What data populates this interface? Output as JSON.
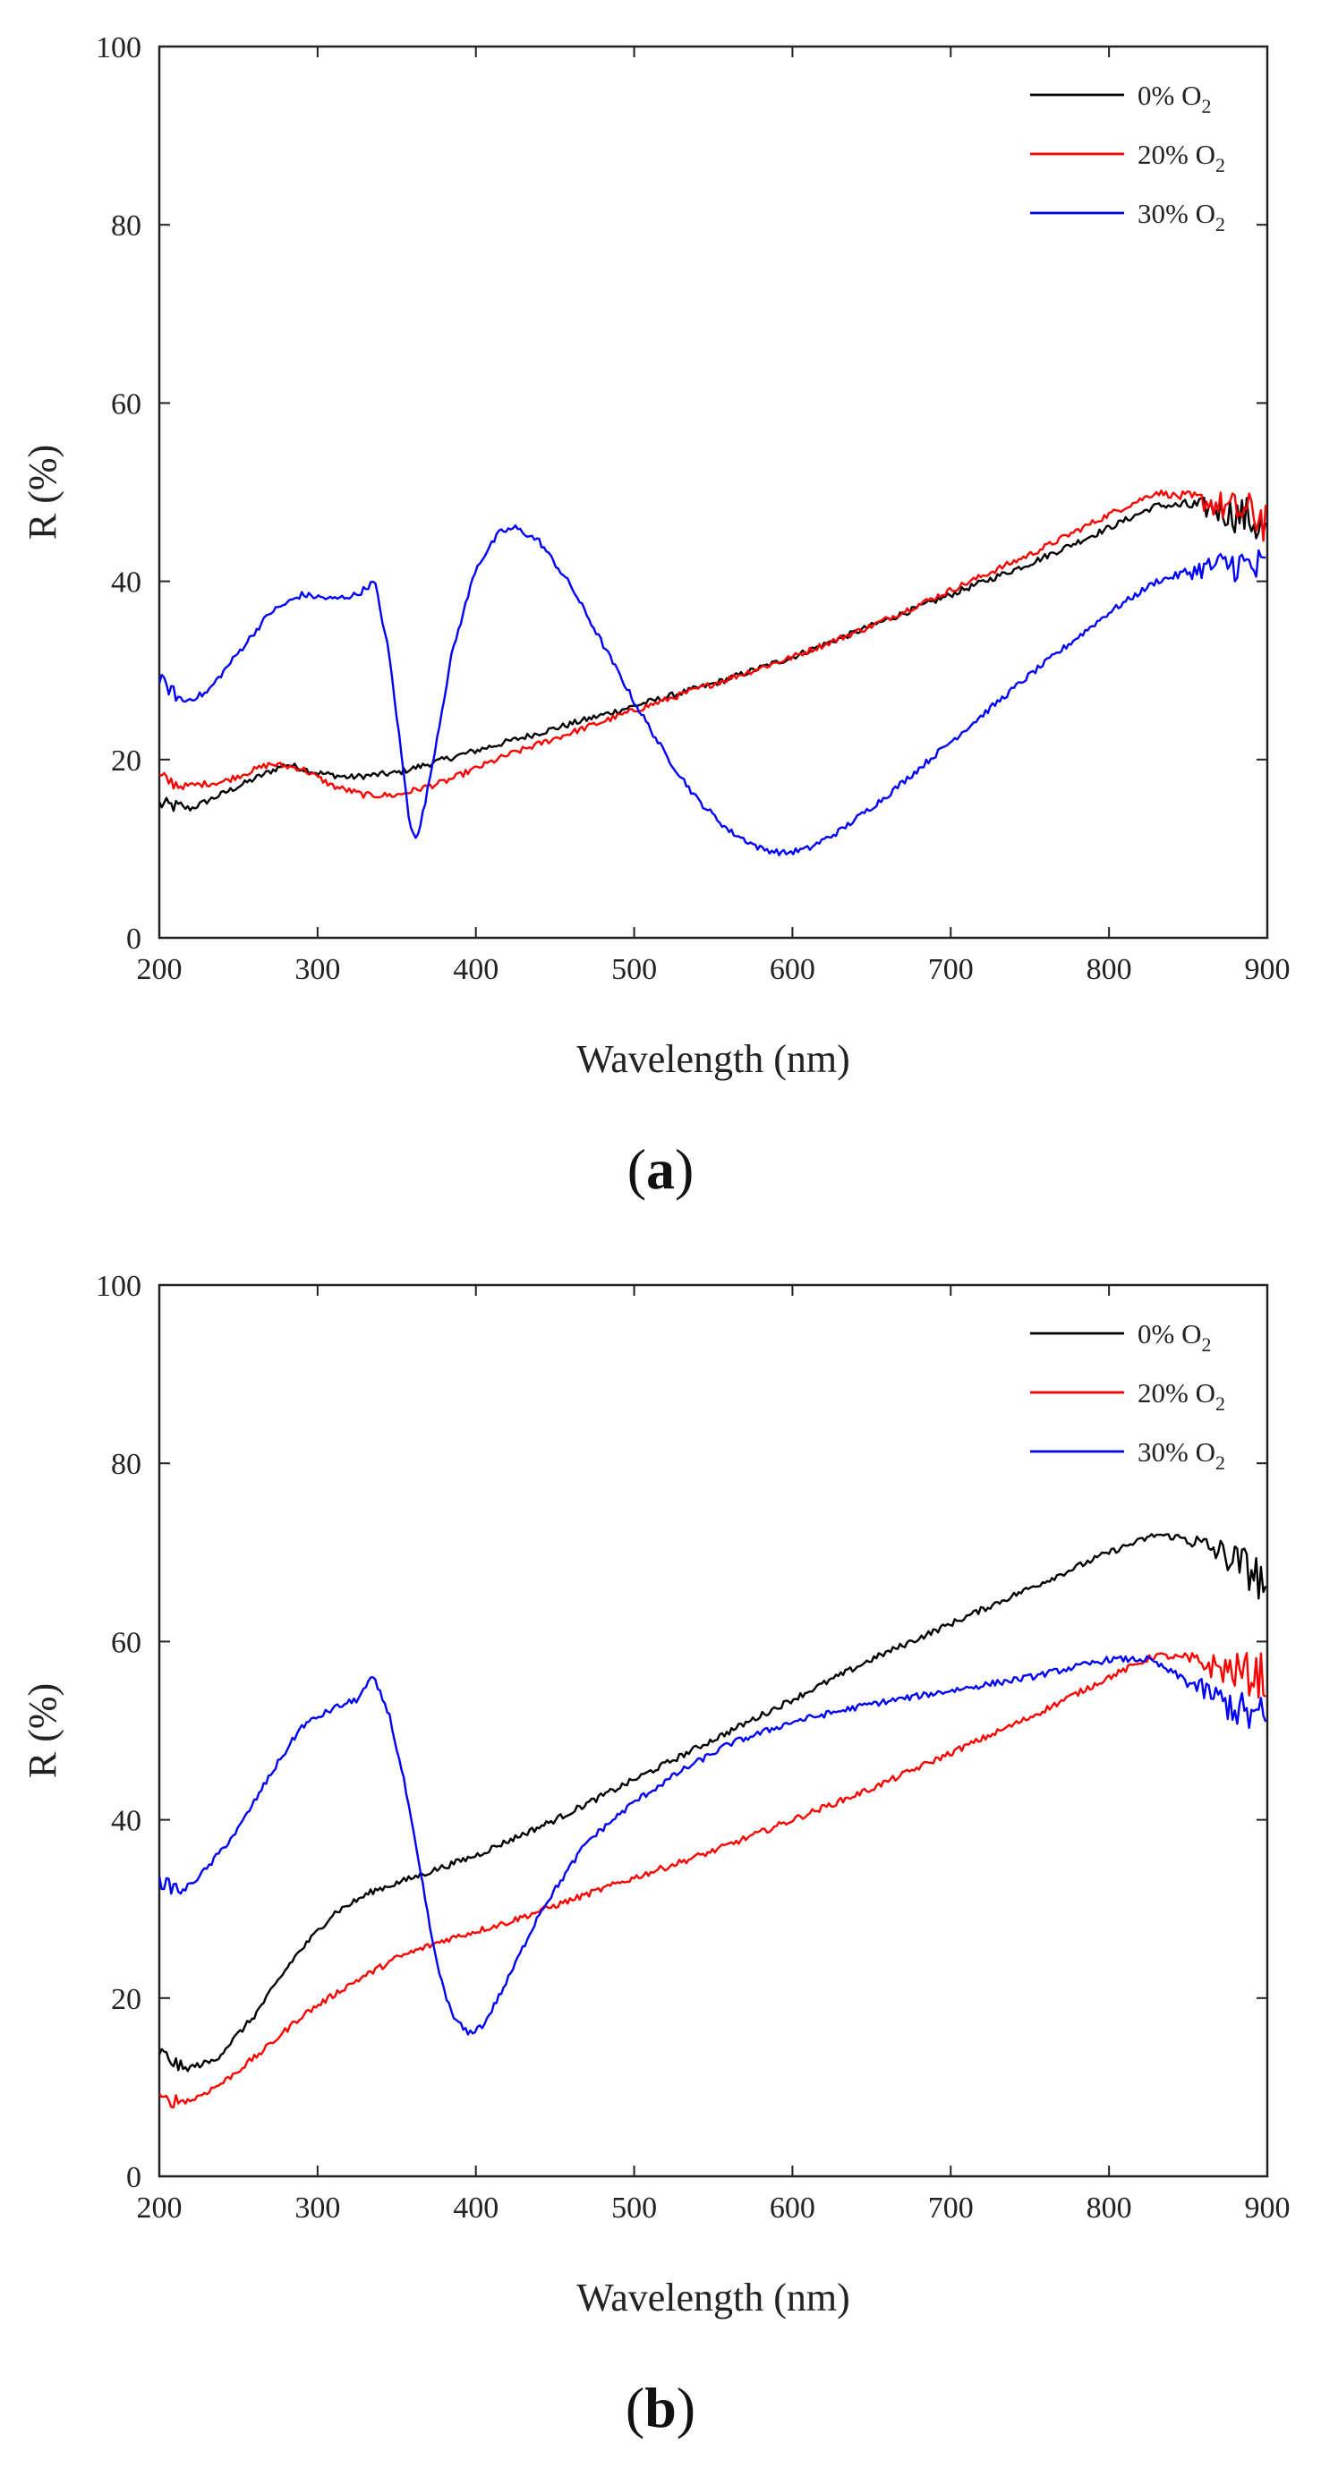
{
  "figure": {
    "panels": [
      {
        "id": "a",
        "label_open": "(",
        "label_letter": "a",
        "label_close": ")"
      },
      {
        "id": "b",
        "label_open": "(",
        "label_letter": "b",
        "label_close": ")"
      }
    ]
  },
  "chart_data": [
    {
      "type": "line",
      "panel": "a",
      "title": "",
      "xlabel": "Wavelength (nm)",
      "ylabel": "R (%)",
      "xlim": [
        200,
        900
      ],
      "ylim": [
        0,
        100
      ],
      "xticks": [
        200,
        300,
        400,
        500,
        600,
        700,
        800,
        900
      ],
      "yticks": [
        0,
        20,
        40,
        60,
        80,
        100
      ],
      "legend_position": "top-right",
      "series": [
        {
          "name": "0% O2",
          "legend_text": "0% O",
          "legend_sub": "2",
          "color": "#000000",
          "points": [
            [
              200,
              15
            ],
            [
              220,
              14.5
            ],
            [
              250,
              17
            ],
            [
              280,
              19.5
            ],
            [
              300,
              18.5
            ],
            [
              320,
              18
            ],
            [
              350,
              18.5
            ],
            [
              380,
              20
            ],
            [
              420,
              22
            ],
            [
              460,
              24
            ],
            [
              500,
              26
            ],
            [
              550,
              28.5
            ],
            [
              600,
              31.5
            ],
            [
              650,
              35
            ],
            [
              700,
              38.5
            ],
            [
              750,
              42
            ],
            [
              800,
              46
            ],
            [
              830,
              48.5
            ],
            [
              850,
              48.5
            ],
            [
              870,
              48
            ],
            [
              890,
              47
            ],
            [
              900,
              45
            ]
          ]
        },
        {
          "name": "20% O2",
          "legend_text": "20% O",
          "legend_sub": "2",
          "color": "#ff0000",
          "points": [
            [
              200,
              18
            ],
            [
              215,
              17
            ],
            [
              240,
              17.5
            ],
            [
              270,
              19.5
            ],
            [
              290,
              19
            ],
            [
              310,
              17
            ],
            [
              330,
              16
            ],
            [
              350,
              16
            ],
            [
              380,
              17.5
            ],
            [
              420,
              20.5
            ],
            [
              460,
              23
            ],
            [
              500,
              25.5
            ],
            [
              550,
              28.5
            ],
            [
              600,
              31.5
            ],
            [
              650,
              35
            ],
            [
              700,
              39
            ],
            [
              750,
              43
            ],
            [
              800,
              47.5
            ],
            [
              830,
              50
            ],
            [
              860,
              49
            ],
            [
              880,
              48
            ],
            [
              900,
              47
            ]
          ]
        },
        {
          "name": "30% O2",
          "legend_text": "30% O",
          "legend_sub": "2",
          "color": "#0000ff",
          "points": [
            [
              200,
              29
            ],
            [
              215,
              26.5
            ],
            [
              230,
              27.5
            ],
            [
              250,
              32
            ],
            [
              270,
              36.5
            ],
            [
              290,
              38.5
            ],
            [
              310,
              38
            ],
            [
              325,
              38.5
            ],
            [
              336,
              40
            ],
            [
              345,
              32
            ],
            [
              352,
              22
            ],
            [
              358,
              13
            ],
            [
              363,
              11
            ],
            [
              370,
              17
            ],
            [
              385,
              32
            ],
            [
              400,
              41.5
            ],
            [
              415,
              45.5
            ],
            [
              425,
              46
            ],
            [
              440,
              44.5
            ],
            [
              460,
              39.5
            ],
            [
              480,
              33
            ],
            [
              500,
              26.5
            ],
            [
              520,
              20.5
            ],
            [
              540,
              15.5
            ],
            [
              560,
              12
            ],
            [
              580,
              10
            ],
            [
              595,
              9.5
            ],
            [
              610,
              10
            ],
            [
              630,
              12
            ],
            [
              660,
              16
            ],
            [
              700,
              22
            ],
            [
              750,
              29.5
            ],
            [
              800,
              36.5
            ],
            [
              830,
              40
            ],
            [
              860,
              41.5
            ],
            [
              880,
              42
            ],
            [
              900,
              41
            ]
          ]
        }
      ]
    },
    {
      "type": "line",
      "panel": "b",
      "title": "",
      "xlabel": "Wavelength (nm)",
      "ylabel": "R (%)",
      "xlim": [
        200,
        900
      ],
      "ylim": [
        0,
        100
      ],
      "xticks": [
        200,
        300,
        400,
        500,
        600,
        700,
        800,
        900
      ],
      "yticks": [
        0,
        20,
        40,
        60,
        80,
        100
      ],
      "legend_position": "top-right",
      "series": [
        {
          "name": "0% O2",
          "legend_text": "0% O",
          "legend_sub": "2",
          "color": "#000000",
          "points": [
            [
              200,
              14
            ],
            [
              215,
              12
            ],
            [
              235,
              13
            ],
            [
              260,
              18
            ],
            [
              285,
              24.5
            ],
            [
              310,
              29.5
            ],
            [
              335,
              32
            ],
            [
              360,
              33.5
            ],
            [
              400,
              36
            ],
            [
              450,
              40
            ],
            [
              500,
              44.5
            ],
            [
              550,
              49
            ],
            [
              600,
              53.5
            ],
            [
              650,
              58
            ],
            [
              700,
              62
            ],
            [
              750,
              66
            ],
            [
              800,
              70
            ],
            [
              830,
              72
            ],
            [
              850,
              71.5
            ],
            [
              870,
              70
            ],
            [
              890,
              68
            ],
            [
              900,
              66
            ]
          ]
        },
        {
          "name": "20% O2",
          "legend_text": "20% O",
          "legend_sub": "2",
          "color": "#ff0000",
          "points": [
            [
              200,
              8.5
            ],
            [
              220,
              8.5
            ],
            [
              240,
              10.5
            ],
            [
              265,
              14
            ],
            [
              290,
              18
            ],
            [
              320,
              21.5
            ],
            [
              350,
              24.5
            ],
            [
              380,
              26.5
            ],
            [
              420,
              28.5
            ],
            [
              460,
              31
            ],
            [
              500,
              33.5
            ],
            [
              550,
              36.5
            ],
            [
              600,
              40
            ],
            [
              650,
              43.5
            ],
            [
              700,
              47.5
            ],
            [
              750,
              51.5
            ],
            [
              800,
              56
            ],
            [
              830,
              58.5
            ],
            [
              850,
              58
            ],
            [
              870,
              57
            ],
            [
              900,
              56
            ]
          ]
        },
        {
          "name": "30% O2",
          "legend_text": "30% O",
          "legend_sub": "2",
          "color": "#0000ff",
          "points": [
            [
              200,
              33
            ],
            [
              215,
              32
            ],
            [
              230,
              34.5
            ],
            [
              250,
              39
            ],
            [
              270,
              45
            ],
            [
              290,
              50.5
            ],
            [
              310,
              52.5
            ],
            [
              325,
              53.5
            ],
            [
              335,
              56
            ],
            [
              345,
              52
            ],
            [
              355,
              44
            ],
            [
              365,
              34
            ],
            [
              375,
              24
            ],
            [
              385,
              18
            ],
            [
              395,
              16
            ],
            [
              405,
              17
            ],
            [
              420,
              22
            ],
            [
              440,
              29.5
            ],
            [
              470,
              37.5
            ],
            [
              500,
              42
            ],
            [
              530,
              45.5
            ],
            [
              560,
              48.5
            ],
            [
              600,
              51
            ],
            [
              650,
              53
            ],
            [
              700,
              54.5
            ],
            [
              750,
              56
            ],
            [
              800,
              58
            ],
            [
              825,
              58
            ],
            [
              845,
              56
            ],
            [
              865,
              54
            ],
            [
              885,
              52
            ],
            [
              900,
              51
            ]
          ]
        }
      ]
    }
  ]
}
